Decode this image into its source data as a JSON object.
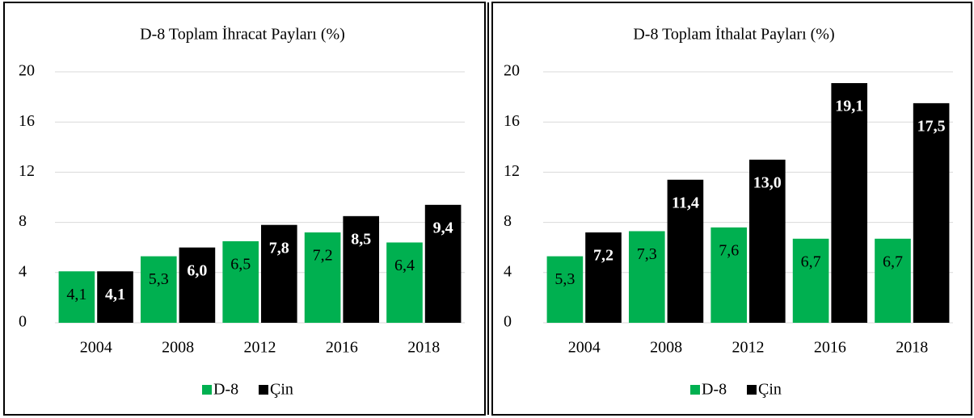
{
  "chart_data": [
    {
      "type": "bar",
      "title": "D-8 Toplam İhracat Payları (%)",
      "categories": [
        "2004",
        "2008",
        "2012",
        "2016",
        "2018"
      ],
      "series": [
        {
          "name": "D-8",
          "color": "#00b050",
          "values": [
            4.1,
            5.3,
            6.5,
            7.2,
            6.4
          ],
          "value_labels": [
            "4,1",
            "5,3",
            "6,5",
            "7,2",
            "6,4"
          ]
        },
        {
          "name": "Çin",
          "color": "#000000",
          "values": [
            4.1,
            6.0,
            7.8,
            8.5,
            9.4
          ],
          "value_labels": [
            "4,1",
            "6,0",
            "7,8",
            "8,5",
            "9,4"
          ]
        }
      ],
      "ylim": [
        0,
        20
      ],
      "yticks": [
        0,
        4,
        8,
        12,
        16,
        20
      ],
      "grid": true,
      "legend": "bottom"
    },
    {
      "type": "bar",
      "title": "D-8 Toplam İthalat Payları (%)",
      "categories": [
        "2004",
        "2008",
        "2012",
        "2016",
        "2018"
      ],
      "series": [
        {
          "name": "D-8",
          "color": "#00b050",
          "values": [
            5.3,
            7.3,
            7.6,
            6.7,
            6.7
          ],
          "value_labels": [
            "5,3",
            "7,3",
            "7,6",
            "6,7",
            "6,7"
          ]
        },
        {
          "name": "Çin",
          "color": "#000000",
          "values": [
            7.2,
            11.4,
            13.0,
            19.1,
            17.5
          ],
          "value_labels": [
            "7,2",
            "11,4",
            "13,0",
            "19,1",
            "17,5"
          ]
        }
      ],
      "ylim": [
        0,
        20
      ],
      "yticks": [
        0,
        4,
        8,
        12,
        16,
        20
      ],
      "grid": true,
      "legend": "bottom"
    }
  ]
}
